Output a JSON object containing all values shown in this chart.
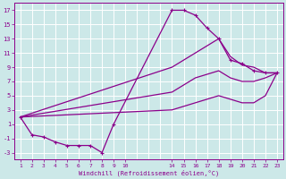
{
  "xlabel": "Windchill (Refroidissement éolien,°C)",
  "bg_color": "#cce8e8",
  "grid_color": "#ffffff",
  "line_color": "#8b008b",
  "xlim": [
    0.5,
    23.5
  ],
  "ylim": [
    -4,
    18
  ],
  "xtick_vals": [
    1,
    2,
    3,
    4,
    5,
    6,
    7,
    8,
    9,
    10,
    14,
    15,
    16,
    17,
    18,
    19,
    20,
    21,
    22,
    23
  ],
  "ytick_vals": [
    -3,
    -1,
    1,
    3,
    5,
    7,
    9,
    11,
    13,
    15,
    17
  ],
  "series": [
    {
      "x": [
        1,
        2,
        3,
        4,
        5,
        6,
        7,
        8,
        9,
        14,
        15,
        16,
        17,
        18,
        19,
        20,
        21,
        22,
        23
      ],
      "y": [
        2,
        -0.5,
        -0.8,
        -1.5,
        -2.0,
        -2.0,
        -2.0,
        -3.0,
        1.0,
        17.0,
        17.0,
        16.3,
        14.5,
        13.0,
        10.0,
        9.5,
        8.5,
        8.2,
        8.2
      ],
      "marker": true
    },
    {
      "x": [
        1,
        14,
        15,
        16,
        17,
        18,
        19,
        20,
        21,
        22,
        23
      ],
      "y": [
        2,
        9.0,
        10.0,
        11.0,
        12.0,
        13.0,
        10.5,
        9.3,
        9.0,
        8.2,
        8.2
      ],
      "marker": false
    },
    {
      "x": [
        1,
        14,
        15,
        16,
        17,
        18,
        19,
        20,
        21,
        22,
        23
      ],
      "y": [
        2,
        5.5,
        6.5,
        7.5,
        8.0,
        8.5,
        7.5,
        7.0,
        7.0,
        7.5,
        8.2
      ],
      "marker": false
    },
    {
      "x": [
        1,
        14,
        15,
        16,
        17,
        18,
        19,
        20,
        21,
        22,
        23
      ],
      "y": [
        2,
        3.0,
        3.5,
        4.0,
        4.5,
        5.0,
        4.5,
        4.0,
        4.0,
        5.0,
        8.2
      ],
      "marker": false
    }
  ]
}
